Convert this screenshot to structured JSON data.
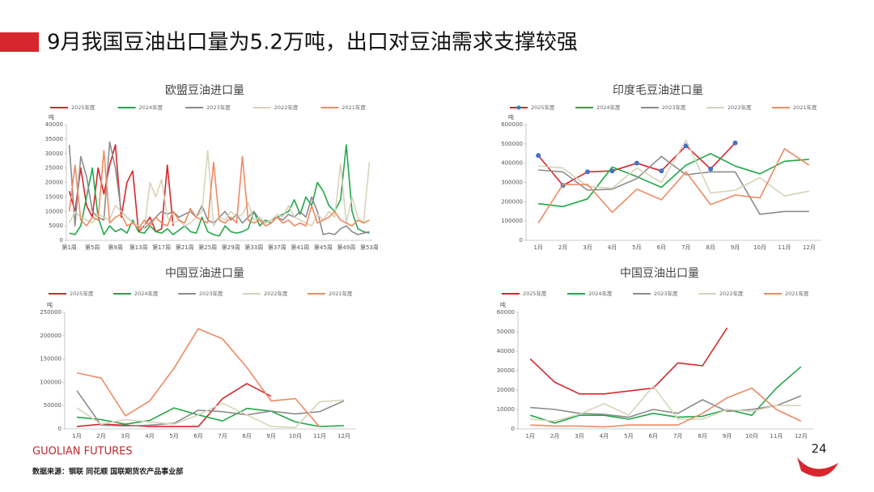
{
  "header": {
    "title": "9月我国豆油出口量为5.2万吨，出口对豆油需求支撑较强"
  },
  "footer": {
    "brand": "GUOLIAN FUTURES",
    "source": "数据来源：钢联 同花顺 国联期货农产品事业部",
    "page": "24"
  },
  "chart_data": [
    {
      "type": "line",
      "title": "欧盟豆油进口量",
      "y_unit": "吨",
      "grid": false,
      "categories": [
        "第1周",
        null,
        null,
        null,
        "第5周",
        null,
        null,
        null,
        "第9周",
        null,
        null,
        null,
        "第13周",
        null,
        null,
        null,
        "第17周",
        null,
        null,
        null,
        "第21周",
        null,
        null,
        null,
        "第25周",
        null,
        null,
        null,
        "第29周",
        null,
        null,
        null,
        "第33周",
        null,
        null,
        null,
        "第37周",
        null,
        null,
        null,
        "第41周",
        null,
        null,
        null,
        "第45周",
        null,
        null,
        null,
        "第49周",
        null,
        null,
        null,
        "第53周"
      ],
      "ylim": [
        0,
        40000
      ],
      "yticks": [
        0,
        5000,
        10000,
        15000,
        20000,
        25000,
        30000,
        35000,
        40000
      ],
      "series": [
        {
          "name": "2025年度",
          "color": "#d7262d",
          "values": [
            17000,
            10000,
            25000,
            12000,
            8000,
            25000,
            16000,
            26000,
            33000,
            8000,
            20000,
            24000,
            3000,
            5000,
            8000,
            3000,
            4000,
            26000,
            5000,
            null,
            null,
            null,
            null,
            null,
            null,
            null,
            null,
            null,
            null,
            null,
            null,
            null,
            null,
            null,
            null,
            null,
            null,
            null,
            null,
            null,
            null,
            null,
            null,
            null,
            null,
            null,
            null,
            null,
            null,
            null,
            null,
            null,
            null
          ]
        },
        {
          "name": "2024年度",
          "color": "#22a849",
          "values": [
            2500,
            2000,
            5000,
            15000,
            25000,
            8000,
            2000,
            5000,
            3000,
            4000,
            2500,
            7000,
            3000,
            2500,
            5000,
            3000,
            2500,
            4000,
            2000,
            3500,
            5000,
            3000,
            2500,
            8000,
            3000,
            2000,
            1500,
            5000,
            3000,
            2500,
            3000,
            4000,
            10000,
            5000,
            7000,
            6000,
            8000,
            9000,
            10000,
            14000,
            9000,
            15000,
            12000,
            20000,
            17000,
            12000,
            10000,
            14000,
            33000,
            10000,
            4000,
            3000,
            2500
          ]
        },
        {
          "name": "2023年度",
          "color": "#8c8c8c",
          "values": [
            33000,
            5000,
            29000,
            22000,
            10000,
            8000,
            7000,
            34000,
            25000,
            10000,
            8000,
            6000,
            5000,
            4000,
            6000,
            8000,
            10000,
            9000,
            10000,
            8000,
            9000,
            10000,
            8000,
            12000,
            7000,
            6000,
            8000,
            10000,
            7000,
            9000,
            6000,
            8000,
            10000,
            7000,
            6000,
            7000,
            8000,
            7000,
            9000,
            8000,
            10000,
            8000,
            15000,
            10000,
            2000,
            2500,
            2000,
            4000,
            5000,
            3000,
            2000,
            2500,
            3000
          ]
        },
        {
          "name": "2022年度",
          "color": "#d8d3ba",
          "values": [
            6000,
            10000,
            8000,
            7000,
            6000,
            9000,
            8000,
            7000,
            12000,
            10000,
            8000,
            6000,
            5000,
            4000,
            20000,
            15000,
            21000,
            8000,
            6000,
            7000,
            5000,
            6000,
            8000,
            10000,
            31000,
            5000,
            8000,
            7000,
            10000,
            8000,
            9000,
            13000,
            7000,
            8000,
            6000,
            7000,
            9000,
            8000,
            12000,
            8000,
            7000,
            6000,
            5000,
            9000,
            7000,
            10000,
            8000,
            26500,
            6000,
            15000,
            8000,
            6000,
            27000
          ]
        },
        {
          "name": "2021年度",
          "color": "#ef8a62",
          "values": [
            10000,
            26000,
            7000,
            5000,
            8000,
            7000,
            31000,
            6000,
            8000,
            9000,
            5000,
            6000,
            4000,
            7000,
            5000,
            8000,
            6000,
            5000,
            10000,
            7000,
            6000,
            11000,
            8000,
            7000,
            6000,
            27000,
            7000,
            6000,
            8000,
            6000,
            29000,
            7000,
            6000,
            7000,
            5000,
            6000,
            8000,
            6000,
            7000,
            5000,
            6000,
            5000,
            12000,
            6000,
            7000,
            8000,
            10000,
            7000,
            6000,
            5000,
            7000,
            6000,
            7000
          ]
        }
      ]
    },
    {
      "type": "line",
      "title": "印度毛豆油进口量",
      "y_unit": "吨",
      "grid": false,
      "categories": [
        "1月",
        "2月",
        "3月",
        "4月",
        "5月",
        "6月",
        "7月",
        "8月",
        "9月",
        "10月",
        "11月",
        "12月"
      ],
      "ylim": [
        0,
        600000
      ],
      "yticks": [
        0,
        100000,
        200000,
        300000,
        400000,
        500000,
        600000
      ],
      "series": [
        {
          "name": "2025年度",
          "color": "#d7262d",
          "marker": true,
          "marker_color": "#4472c4",
          "values": [
            440000,
            285000,
            355000,
            360000,
            400000,
            360000,
            490000,
            370000,
            505000,
            null,
            null,
            null
          ]
        },
        {
          "name": "2024年度",
          "color": "#22a849",
          "values": [
            190000,
            175000,
            215000,
            380000,
            330000,
            275000,
            390000,
            450000,
            385000,
            345000,
            410000,
            420000
          ]
        },
        {
          "name": "2023年度",
          "color": "#8c8c8c",
          "values": [
            365000,
            355000,
            260000,
            265000,
            320000,
            435000,
            340000,
            355000,
            355000,
            135000,
            150000,
            150000
          ]
        },
        {
          "name": "2022年度",
          "color": "#d8d3ba",
          "values": [
            385000,
            375000,
            280000,
            270000,
            375000,
            300000,
            520000,
            245000,
            260000,
            325000,
            230000,
            255000
          ]
        },
        {
          "name": "2021年度",
          "color": "#ef8a62",
          "values": [
            90000,
            290000,
            290000,
            145000,
            265000,
            210000,
            355000,
            185000,
            235000,
            220000,
            475000,
            390000
          ]
        }
      ]
    },
    {
      "type": "line",
      "title": "中国豆油进口量",
      "y_unit": "吨",
      "grid": false,
      "categories": [
        "1月",
        "2月",
        "3月",
        "4月",
        "5月",
        "6月",
        "7月",
        "8月",
        "9月",
        "10月",
        "11月",
        "12月"
      ],
      "ylim": [
        0,
        250000
      ],
      "yticks": [
        0,
        50000,
        100000,
        150000,
        200000,
        250000
      ],
      "series": [
        {
          "name": "2025年度",
          "color": "#d7262d",
          "values": [
            5000,
            10000,
            8000,
            5000,
            5000,
            5000,
            65000,
            97000,
            70000,
            null,
            null,
            null
          ]
        },
        {
          "name": "2024年度",
          "color": "#22a849",
          "values": [
            25000,
            20000,
            10000,
            18000,
            45000,
            30000,
            17000,
            44000,
            38000,
            15000,
            5000,
            7000
          ]
        },
        {
          "name": "2023年度",
          "color": "#8c8c8c",
          "values": [
            82000,
            8000,
            6000,
            8000,
            12000,
            40000,
            37000,
            30000,
            38000,
            32000,
            37000,
            60000
          ]
        },
        {
          "name": "2022年度",
          "color": "#d8d3ba",
          "values": [
            45000,
            10000,
            20000,
            15000,
            10000,
            30000,
            55000,
            30000,
            5000,
            3000,
            58000,
            62000
          ]
        },
        {
          "name": "2021年度",
          "color": "#ef8a62",
          "values": [
            120000,
            109000,
            28000,
            60000,
            130000,
            215000,
            193000,
            132000,
            60000,
            65000,
            4000,
            null
          ]
        }
      ]
    },
    {
      "type": "line",
      "title": "中国豆油出口量",
      "y_unit": "吨",
      "grid": false,
      "categories": [
        "1月",
        "2月",
        "3月",
        "4月",
        "5月",
        "6月",
        "7月",
        "8月",
        "9月",
        "10月",
        "11月",
        "12月"
      ],
      "ylim": [
        0,
        60000
      ],
      "yticks": [
        0,
        10000,
        20000,
        30000,
        40000,
        50000,
        60000
      ],
      "series": [
        {
          "name": "2025年度",
          "color": "#d7262d",
          "values": [
            36000,
            24000,
            18000,
            18000,
            19500,
            21000,
            34000,
            32500,
            52000,
            null,
            null,
            null
          ]
        },
        {
          "name": "2024年度",
          "color": "#22a849",
          "values": [
            7000,
            3000,
            7000,
            7000,
            5000,
            8000,
            6000,
            6500,
            10000,
            7000,
            21000,
            32000
          ]
        },
        {
          "name": "2023年度",
          "color": "#8c8c8c",
          "values": [
            11000,
            10000,
            8000,
            7500,
            6000,
            10000,
            8000,
            15000,
            9000,
            10000,
            12000,
            17000
          ]
        },
        {
          "name": "2022年度",
          "color": "#d8d3ba",
          "values": [
            5000,
            4000,
            7500,
            13000,
            7000,
            22000,
            5000,
            5000,
            10000,
            9000,
            12000,
            12000
          ]
        },
        {
          "name": "2021年度",
          "color": "#ef8a62",
          "values": [
            2000,
            1500,
            1500,
            1000,
            2000,
            2000,
            2000,
            8000,
            16000,
            21000,
            10000,
            4000
          ]
        }
      ]
    }
  ]
}
